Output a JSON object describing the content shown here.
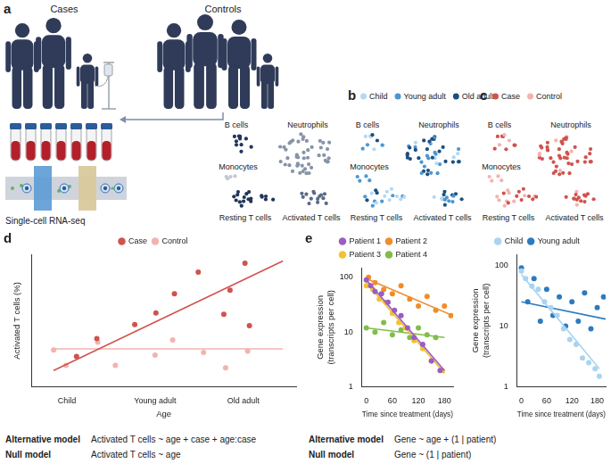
{
  "panels": {
    "a": {
      "label": "a",
      "groups": [
        "Cases",
        "Controls"
      ],
      "assay": "Single-cell RNA-seq",
      "clusters": [
        "B cells",
        "Neutrophils",
        "Monocytes",
        "Resting T cells",
        "Activated T cells"
      ]
    },
    "b": {
      "label": "b",
      "legend": [
        {
          "name": "Child",
          "color": "#b3d9f2"
        },
        {
          "name": "Young adult",
          "color": "#4b97d2"
        },
        {
          "name": "Old adult",
          "color": "#1c4f80"
        }
      ],
      "clusters": [
        "B cells",
        "Neutrophils",
        "Monocytes",
        "Resting T cells",
        "Activated T cells"
      ]
    },
    "c": {
      "label": "c",
      "legend": [
        {
          "name": "Case",
          "color": "#d0534e"
        },
        {
          "name": "Control",
          "color": "#f2b3b0"
        }
      ],
      "clusters": [
        "B cells",
        "Neutrophils",
        "Monocytes",
        "Resting T cells",
        "Activated T cells"
      ]
    },
    "d": {
      "label": "d",
      "models": [
        {
          "name": "Alternative model",
          "formula": "Activated T cells ~ age + case + age:case"
        },
        {
          "name": "Null model",
          "formula": "Activated T cells ~ age"
        }
      ]
    },
    "e": {
      "label": "e",
      "models": [
        {
          "name": "Alternative model",
          "formula": "Gene ~ age + (1 | patient)"
        },
        {
          "name": "Null model",
          "formula": "Gene ~ (1 | patient)"
        }
      ]
    }
  },
  "chart_data": [
    {
      "type": "scatter",
      "x_label": "Age",
      "y_label": [
        "Activated T cells (%)"
      ],
      "xlim": [
        0.6,
        3.6
      ],
      "xticks": [
        {
          "value": 1,
          "label": "Child"
        },
        {
          "value": 2,
          "label": "Young adult"
        },
        {
          "value": 3,
          "label": "Old adult"
        }
      ],
      "ylim": [
        0,
        40
      ],
      "yticks": [],
      "tick_labels": "x",
      "grid": false,
      "legend": "top",
      "marker": "circle",
      "series": [
        {
          "name": "Case",
          "color": "#d0534e",
          "x": [
            1.11,
            1.34,
            1.77,
            2.01,
            2.22,
            2.49,
            2.78,
            2.85,
            3.02,
            3.07
          ],
          "values": [
            9.2,
            14.6,
            18.8,
            22.3,
            28.1,
            34.6,
            21.9,
            29.2,
            37.3,
            18.5
          ],
          "line_style": "solid",
          "trend": {
            "x": [
              0.85,
              3.45
            ],
            "values": [
              5,
              38
            ]
          }
        },
        {
          "name": "Control",
          "color": "#f2b3b0",
          "x": [
            0.85,
            0.99,
            1.35,
            1.55,
            2.0,
            2.2,
            2.55,
            2.8,
            3.05
          ],
          "values": [
            11.2,
            6.5,
            13.5,
            6.5,
            9.6,
            14.2,
            10.4,
            5.8,
            10.8
          ],
          "line_style": "solid",
          "trend": {
            "x": [
              0.85,
              3.45
            ],
            "values": [
              11.5,
              11.5
            ]
          }
        }
      ]
    },
    {
      "type": "scatter",
      "x_label": "Time since treatment (days)",
      "y_label": [
        "Gene expression",
        "(transcripts per cell)"
      ],
      "xlim": [
        -10,
        200
      ],
      "xticks": [
        0,
        60,
        120,
        180
      ],
      "ylim": [
        1,
        150
      ],
      "yticks": [
        1,
        10,
        100
      ],
      "log": "y",
      "grid": false,
      "legend": "top",
      "marker": "circle",
      "series": [
        {
          "name": "Patient 1",
          "color": "#9d5cc0",
          "x": [
            0,
            10,
            20,
            35,
            50,
            65,
            80,
            95,
            110,
            130,
            150,
            170
          ],
          "values": [
            90,
            70,
            55,
            50,
            35,
            25,
            20,
            12,
            8,
            6,
            3,
            2
          ],
          "line_style": "solid",
          "trend": {
            "x": [
              0,
              180
            ],
            "values": [
              90,
              2
            ]
          }
        },
        {
          "name": "Patient 2",
          "color": "#f08c2a",
          "x": [
            5,
            20,
            40,
            60,
            80,
            100,
            120,
            140,
            160,
            180,
            195
          ],
          "values": [
            100,
            80,
            60,
            50,
            70,
            40,
            30,
            45,
            25,
            30,
            20
          ],
          "line_style": "solid",
          "trend": {
            "x": [
              0,
              200
            ],
            "values": [
              95,
              20
            ]
          }
        },
        {
          "name": "Patient 3",
          "color": "#f2c230",
          "x": [
            0,
            15,
            30,
            45,
            60,
            75,
            90,
            110,
            130,
            150,
            175
          ],
          "values": [
            70,
            60,
            40,
            35,
            22,
            15,
            12,
            7,
            5,
            3,
            2
          ],
          "line_style": "solid",
          "trend": {
            "x": [
              0,
              180
            ],
            "values": [
              80,
              1.8
            ]
          }
        },
        {
          "name": "Patient 4",
          "color": "#82bd4a",
          "x": [
            0,
            20,
            40,
            60,
            80,
            100,
            120,
            140,
            160
          ],
          "values": [
            12,
            10,
            15,
            9,
            11,
            8,
            12,
            9,
            8
          ],
          "line_style": "solid",
          "trend": {
            "x": [
              0,
              180
            ],
            "values": [
              12,
              8
            ]
          }
        }
      ]
    },
    {
      "type": "scatter",
      "x_label": "Time since treatment (days)",
      "y_label": [
        "Gene expression",
        "(transcripts per cell)"
      ],
      "xlim": [
        -10,
        200
      ],
      "xticks": [
        0,
        60,
        120,
        180
      ],
      "ylim": [
        1,
        150
      ],
      "yticks": [
        1,
        10,
        100
      ],
      "log": "y",
      "grid": false,
      "legend": "top",
      "marker": "circle",
      "series": [
        {
          "name": "Child",
          "color": "#a8d4f0",
          "x": [
            0,
            10,
            25,
            40,
            55,
            70,
            85,
            100,
            115,
            130,
            145,
            160,
            175,
            185
          ],
          "values": [
            80,
            60,
            45,
            40,
            25,
            20,
            15,
            9,
            6,
            5,
            3,
            2.5,
            2,
            1.5
          ],
          "line_style": "solid",
          "trend": {
            "x": [
              0,
              185
            ],
            "values": [
              70,
              2
            ]
          }
        },
        {
          "name": "Young adult",
          "color": "#2c7bbf",
          "x": [
            0,
            15,
            30,
            45,
            60,
            75,
            90,
            105,
            120,
            135,
            150,
            165,
            180,
            195
          ],
          "values": [
            90,
            25,
            60,
            12,
            40,
            15,
            30,
            10,
            25,
            12,
            35,
            9,
            20,
            30
          ],
          "line_style": "solid",
          "trend": {
            "x": [
              0,
              200
            ],
            "values": [
              25,
              13
            ]
          }
        }
      ]
    }
  ]
}
